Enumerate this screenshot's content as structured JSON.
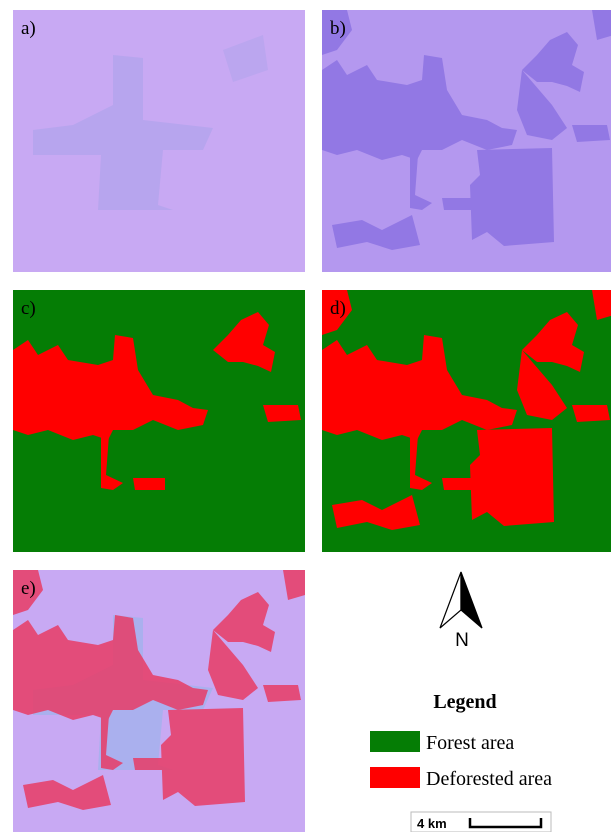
{
  "panels": {
    "a": "a)",
    "b": "b)",
    "c": "c)",
    "d": "d)",
    "e": "e)"
  },
  "north": "N",
  "legend": {
    "title": "Legend",
    "items": [
      "Forest area",
      "Deforested area"
    ]
  },
  "scale": "4 km"
}
